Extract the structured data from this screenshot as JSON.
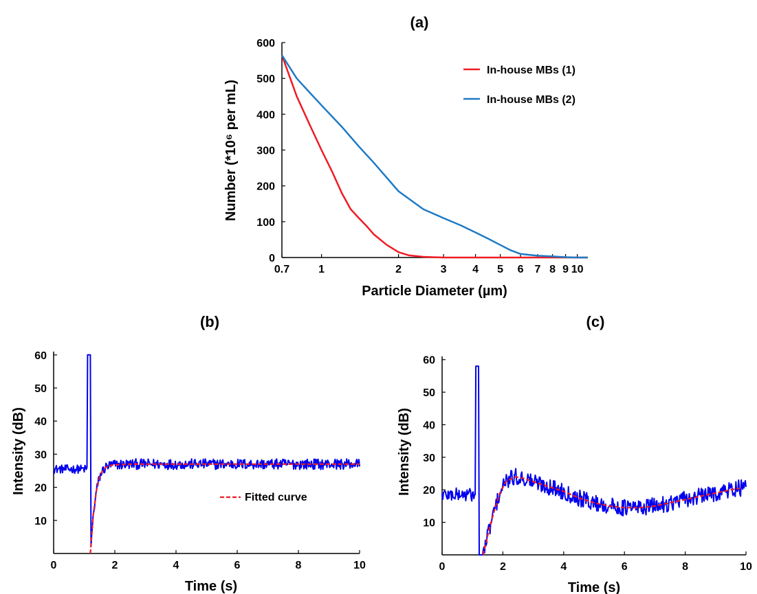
{
  "chart_data": [
    {
      "id": "a",
      "panel_label": "(a)",
      "type": "line",
      "xscale": "log",
      "xlabel": "Particle Diameter (µm)",
      "ylabel": "Number (*10⁶ per mL)",
      "xlim": [
        0.7,
        11
      ],
      "ylim": [
        0,
        600
      ],
      "xticks": [
        0.7,
        1,
        2,
        3,
        4,
        5,
        6,
        7,
        8,
        9,
        10
      ],
      "xtick_labels": [
        "0.7",
        "1",
        "2",
        "3",
        "4",
        "5",
        "6",
        "7",
        "8",
        "9",
        "10"
      ],
      "yticks": [
        0,
        100,
        200,
        300,
        400,
        500,
        600
      ],
      "legend": "top-right",
      "grid": false,
      "series": [
        {
          "name": "In-house MBs (1)",
          "color": "#ee1c25",
          "x": [
            0.7,
            0.8,
            0.9,
            1.0,
            1.1,
            1.2,
            1.3,
            1.4,
            1.5,
            1.6,
            1.8,
            2.0,
            2.2,
            2.5,
            3,
            4,
            5,
            6,
            8,
            10,
            11
          ],
          "y": [
            565,
            450,
            370,
            300,
            240,
            180,
            135,
            110,
            88,
            65,
            35,
            15,
            6,
            2,
            0,
            0,
            0,
            0,
            0,
            0,
            0
          ]
        },
        {
          "name": "In-house MBs (2)",
          "color": "#1f7ac4",
          "x": [
            0.7,
            0.8,
            0.9,
            1.0,
            1.2,
            1.4,
            1.6,
            2.0,
            2.5,
            3.0,
            3.5,
            4.0,
            4.5,
            5.0,
            5.5,
            6.0,
            7,
            8,
            9,
            10,
            11
          ],
          "y": [
            565,
            500,
            460,
            425,
            365,
            310,
            265,
            185,
            135,
            110,
            90,
            70,
            52,
            35,
            20,
            10,
            5,
            3,
            1,
            0,
            0
          ]
        }
      ]
    },
    {
      "id": "b",
      "panel_label": "(b)",
      "type": "line",
      "xlabel": "Time (s)",
      "ylabel": "Intensity (dB)",
      "xlim": [
        0,
        10
      ],
      "ylim": [
        0,
        61
      ],
      "xticks": [
        0,
        2,
        4,
        6,
        8,
        10
      ],
      "yticks": [
        10,
        20,
        30,
        40,
        50,
        60
      ],
      "legend": "lower-right",
      "grid": false,
      "raw_signal": {
        "color": "#0000ee",
        "baseline_db": 25.5,
        "spike_time_s": 1.15,
        "spike_peak_db": 60,
        "drop_time_s": 1.2,
        "drop_min_db": 0,
        "plateau_db": 27,
        "noise_db": 1.6,
        "samples": 450
      },
      "series": [
        {
          "name": "Fitted curve",
          "color": "#ee1c25",
          "style": "dashed",
          "x": [
            1.2,
            1.3,
            1.4,
            1.5,
            1.6,
            1.7,
            1.8,
            2.0,
            2.5,
            3,
            4,
            5,
            6,
            7,
            8,
            9,
            10
          ],
          "y": [
            0,
            12,
            19,
            23,
            25,
            26,
            26.5,
            26.8,
            27,
            27,
            27,
            27,
            27,
            27,
            27,
            27,
            27
          ]
        }
      ]
    },
    {
      "id": "c",
      "panel_label": "(c)",
      "type": "line",
      "xlabel": "Time (s)",
      "ylabel": "Intensity (dB)",
      "xlim": [
        0,
        10
      ],
      "ylim": [
        0,
        61
      ],
      "xticks": [
        0,
        2,
        4,
        6,
        8,
        10
      ],
      "yticks": [
        10,
        20,
        30,
        40,
        50,
        60
      ],
      "grid": false,
      "raw_signal": {
        "color": "#0000ee",
        "baseline_db": 18.5,
        "spike_time_s": 1.15,
        "spike_peak_db": 58,
        "drop_time_s": 1.3,
        "drop_min_db": 0,
        "noise_db": 2.6,
        "samples": 450
      },
      "series": [
        {
          "name": "",
          "color": "#ee1c25",
          "style": "dashed",
          "x": [
            1.35,
            1.5,
            1.7,
            1.9,
            2.1,
            2.4,
            2.7,
            3.0,
            3.5,
            4.0,
            4.5,
            5.0,
            5.5,
            6.0,
            6.5,
            7.0,
            7.5,
            8.0,
            8.5,
            9.0,
            9.5,
            9.8
          ],
          "y": [
            0,
            6,
            13,
            19,
            22.5,
            24,
            23.5,
            22.5,
            21,
            19.5,
            17.5,
            16,
            15,
            14.5,
            14.5,
            15,
            16,
            17,
            18,
            19,
            20,
            20.5
          ]
        }
      ]
    }
  ]
}
